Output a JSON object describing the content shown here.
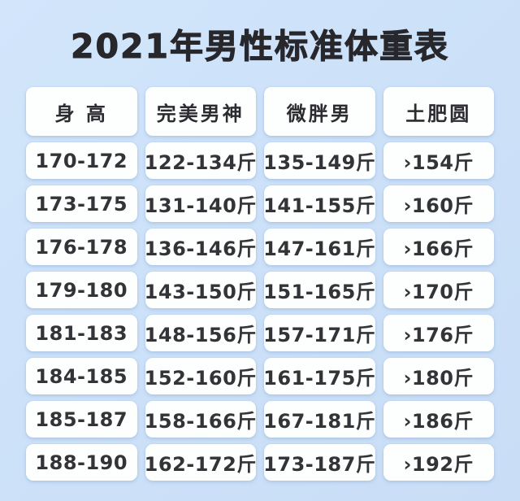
{
  "chart_data": {
    "type": "table",
    "title": "2021年男性标准体重表",
    "columns": [
      "身 高",
      "完美男神",
      "微胖男",
      "土肥圆"
    ],
    "rows": [
      [
        "170-172",
        "122-134斤",
        "135-149斤",
        "›154斤"
      ],
      [
        "173-175",
        "131-140斤",
        "141-155斤",
        "›160斤"
      ],
      [
        "176-178",
        "136-146斤",
        "147-161斤",
        "›166斤"
      ],
      [
        "179-180",
        "143-150斤",
        "151-165斤",
        "›170斤"
      ],
      [
        "181-183",
        "148-156斤",
        "157-171斤",
        "›176斤"
      ],
      [
        "184-185",
        "152-160斤",
        "161-175斤",
        "›180斤"
      ],
      [
        "185-187",
        "158-166斤",
        "167-181斤",
        "›186斤"
      ],
      [
        "188-190",
        "162-172斤",
        "173-187斤",
        "›192斤"
      ]
    ],
    "layout": {
      "legend": "none",
      "grid": "off",
      "header_row": true,
      "columns_count": 4,
      "rows_count": 8
    }
  },
  "colors": {
    "background": "#cde2f9",
    "cell_background": "#fdfefe",
    "title_text": "#27272c",
    "cell_text": "#333338",
    "cell_shadow": "#94b2d7"
  }
}
